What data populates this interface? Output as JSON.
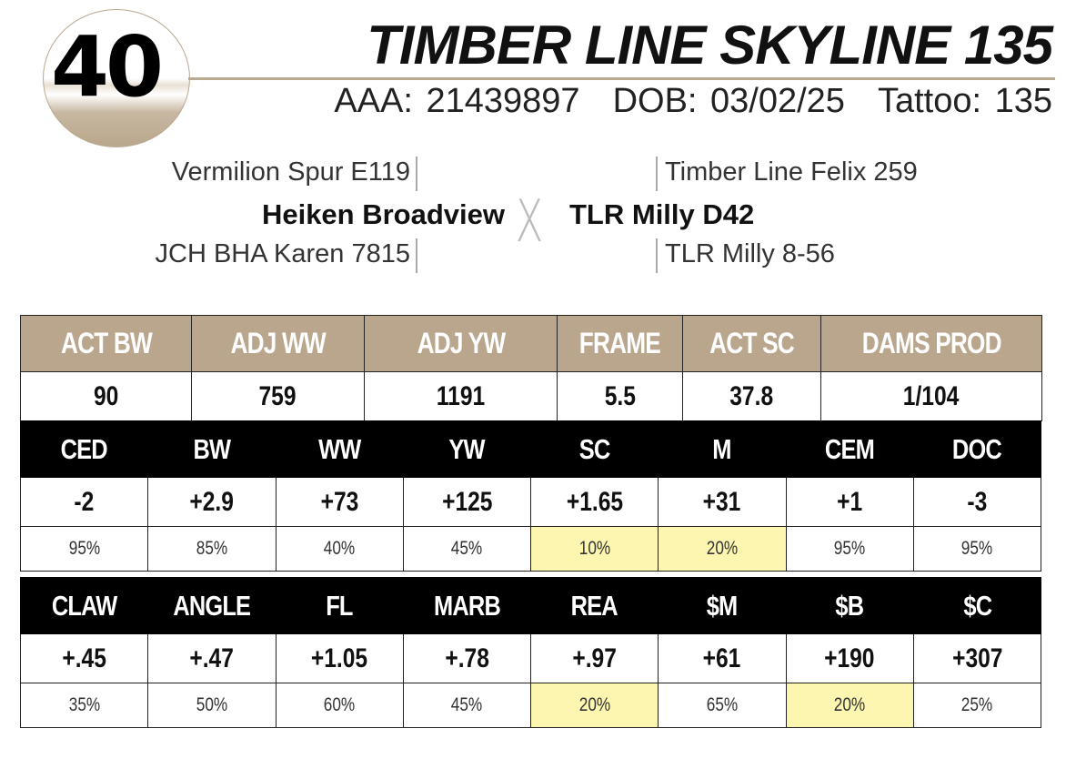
{
  "lot_number": "40",
  "title": "TIMBER LINE SKYLINE 135",
  "ids": {
    "aaa": "AAA: 21439897",
    "dob": "DOB: 03/02/25",
    "tattoo": "Tattoo: 135"
  },
  "pedigree": {
    "sire": "Heiken Broadview",
    "sire_sire": "Vermilion Spur E119",
    "sire_dam": "JCH BHA Karen 7815",
    "cross": "X",
    "dam": "TLR Milly D42",
    "dam_sire": "Timber Line Felix 259",
    "dam_dam": "TLR Milly 8-56"
  },
  "actuals": {
    "headers": [
      "ACT BW",
      "ADJ WW",
      "ADJ YW",
      "FRAME",
      "ACT SC",
      "DAMS PROD"
    ],
    "values": [
      "90",
      "759",
      "1191",
      "5.5",
      "37.8",
      "1/104"
    ]
  },
  "epd1": {
    "headers": [
      "CED",
      "BW",
      "WW",
      "YW",
      "SC",
      "M",
      "CEM",
      "DOC"
    ],
    "values": [
      "-2",
      "+2.9",
      "+73",
      "+125",
      "+1.65",
      "+31",
      "+1",
      "-3"
    ],
    "percentiles": [
      "95%",
      "85%",
      "40%",
      "45%",
      "10%",
      "20%",
      "95%",
      "95%"
    ],
    "highlighted": [
      false,
      false,
      false,
      false,
      true,
      true,
      false,
      false
    ]
  },
  "epd2": {
    "headers": [
      "CLAW",
      "ANGLE",
      "FL",
      "MARB",
      "REA",
      "$M",
      "$B",
      "$C"
    ],
    "values": [
      "+.45",
      "+.47",
      "+1.05",
      "+.78",
      "+.97",
      "+61",
      "+190",
      "+307"
    ],
    "percentiles": [
      "35%",
      "50%",
      "60%",
      "45%",
      "20%",
      "65%",
      "20%",
      "25%"
    ],
    "highlighted": [
      false,
      false,
      false,
      false,
      true,
      false,
      true,
      false
    ]
  },
  "colors": {
    "tan": "#b9a68c",
    "black": "#000000",
    "highlight": "#fdf6b0"
  }
}
